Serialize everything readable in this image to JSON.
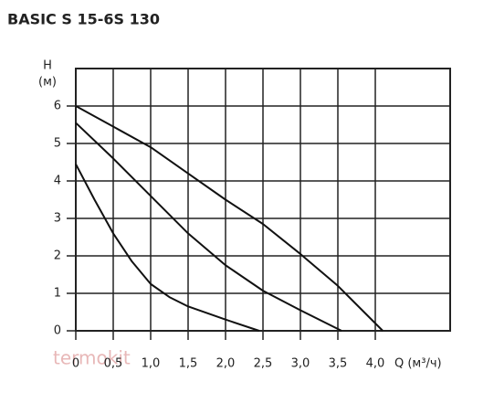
{
  "chart_data": {
    "type": "line",
    "title": "BASIC S 15-6S 130",
    "y_label_symbol": "H",
    "y_label_unit": "(м)",
    "x_label": "Q (м³/ч)",
    "watermark": "termokit",
    "xlim": [
      0,
      5
    ],
    "ylim": [
      0,
      7
    ],
    "xticks": [
      0,
      {
        "value": 0.5,
        "label": "0,5"
      },
      {
        "value": 1,
        "label": "1,0"
      },
      {
        "value": 1.5,
        "label": "1,5"
      },
      {
        "value": 2,
        "label": "2,0"
      },
      {
        "value": 2.5,
        "label": "2,5"
      },
      {
        "value": 3,
        "label": "3,0"
      },
      {
        "value": 3.5,
        "label": "3,5"
      },
      {
        "value": 4,
        "label": "4,0"
      }
    ],
    "yticks": [
      0,
      1,
      2,
      3,
      4,
      5,
      6
    ],
    "grid": true,
    "series": [
      {
        "color": "#111111",
        "x": [
          0,
          0.25,
          0.5,
          0.75,
          1.0,
          1.25,
          1.5,
          2.0,
          2.45
        ],
        "values": [
          4.45,
          3.5,
          2.6,
          1.85,
          1.25,
          0.9,
          0.65,
          0.3,
          0
        ]
      },
      {
        "color": "#111111",
        "x": [
          0,
          0.5,
          1.0,
          1.5,
          2.0,
          2.5,
          3.0,
          3.55
        ],
        "values": [
          5.55,
          4.6,
          3.6,
          2.6,
          1.75,
          1.07,
          0.55,
          0
        ]
      },
      {
        "color": "#111111",
        "x": [
          0,
          0.5,
          1.0,
          1.5,
          2.0,
          2.5,
          3.0,
          3.5,
          4.1
        ],
        "values": [
          6,
          5.45,
          4.9,
          4.2,
          3.5,
          2.85,
          2.05,
          1.2,
          0
        ]
      }
    ]
  }
}
